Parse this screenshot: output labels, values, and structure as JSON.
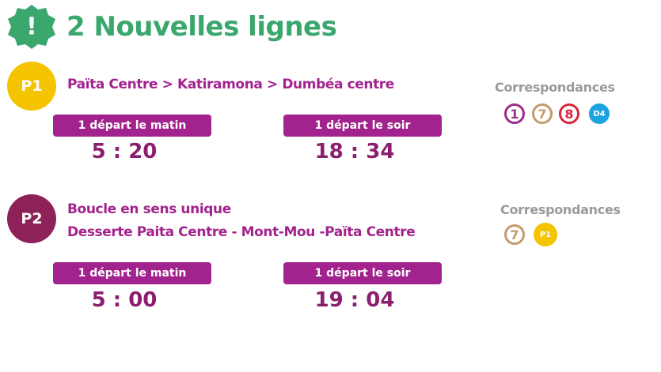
{
  "header": {
    "badge": "!",
    "title": "2 Nouvelles lignes"
  },
  "lines": [
    {
      "code": "P1",
      "route": [
        "Païta  Centre > Katiramona > Dumbéa centre"
      ],
      "departures": [
        {
          "label": "1 départ le matin",
          "time": "5 : 20"
        },
        {
          "label": "1 départ le soir",
          "time": "18 : 34"
        }
      ],
      "connections": {
        "title": "Correspondances",
        "badges": [
          "1",
          "7",
          "8",
          "D4"
        ]
      }
    },
    {
      "code": "P2",
      "route": [
        "Boucle en sens unique",
        "Desserte Paita Centre - Mont-Mou -Païta Centre"
      ],
      "departures": [
        {
          "label": "1 départ le matin",
          "time": "5 : 00"
        },
        {
          "label": "1 départ le soir",
          "time": "19 : 04"
        }
      ],
      "connections": {
        "title": "Correspondances",
        "badges": [
          "7",
          "P1"
        ]
      }
    }
  ]
}
